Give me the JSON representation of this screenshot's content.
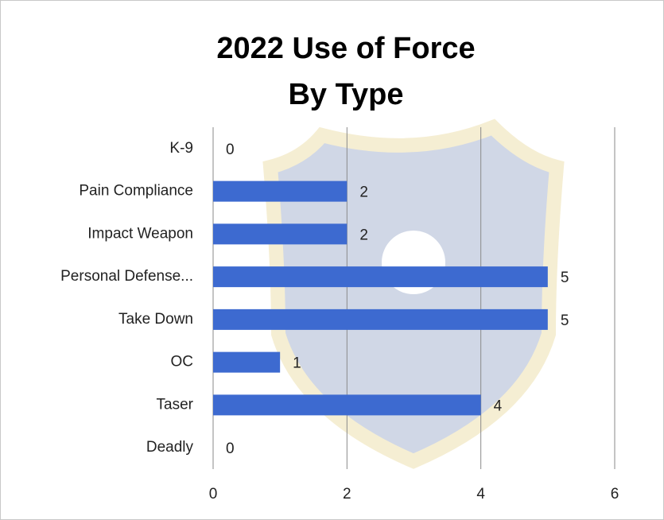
{
  "chart_data": {
    "type": "hbar",
    "title": [
      "2022 Use of Force",
      "By Type"
    ],
    "categories": [
      "K-9",
      "Pain Compliance",
      "Impact Weapon",
      "Personal Defense...",
      "Take Down",
      "OC",
      "Taser",
      "Deadly"
    ],
    "values": [
      0,
      2,
      2,
      5,
      5,
      1,
      4,
      0
    ],
    "color": "#3d6ad0",
    "xlim": [
      0,
      6
    ],
    "xticks": [
      0,
      2,
      4,
      6
    ],
    "grid": true
  }
}
